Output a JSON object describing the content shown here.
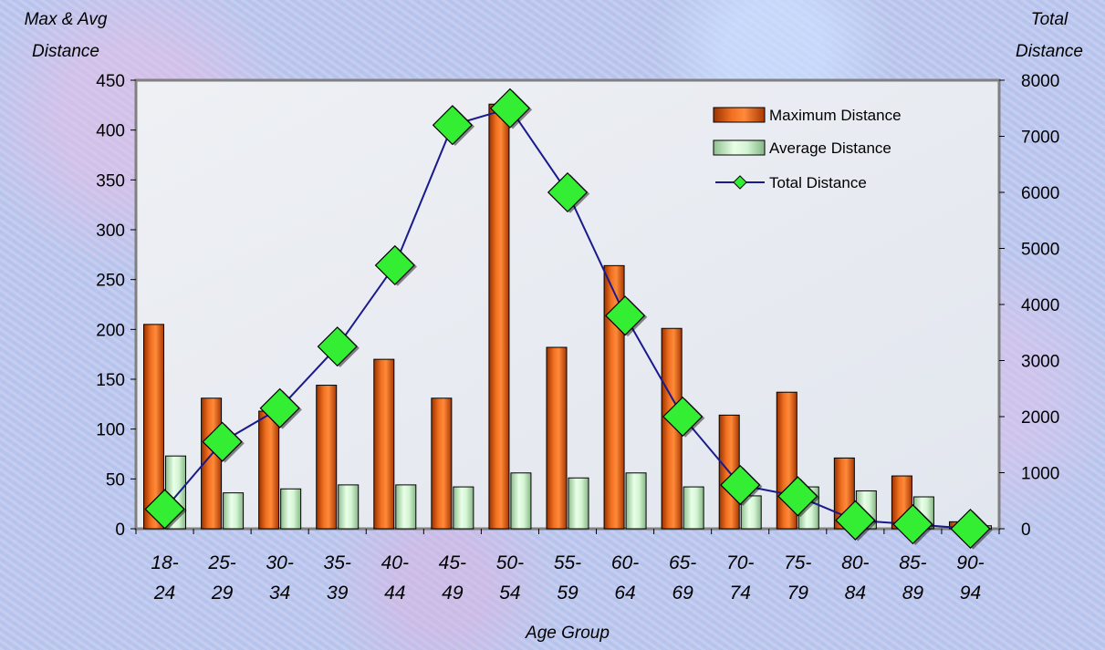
{
  "chart_data": {
    "type": "bar",
    "categories": [
      [
        "18-",
        "24"
      ],
      [
        "25-",
        "29"
      ],
      [
        "30-",
        "34"
      ],
      [
        "35-",
        "39"
      ],
      [
        "40-",
        "44"
      ],
      [
        "45-",
        "49"
      ],
      [
        "50-",
        "54"
      ],
      [
        "55-",
        "59"
      ],
      [
        "60-",
        "64"
      ],
      [
        "65-",
        "69"
      ],
      [
        "70-",
        "74"
      ],
      [
        "75-",
        "79"
      ],
      [
        "80-",
        "84"
      ],
      [
        "85-",
        "89"
      ],
      [
        "90-",
        "94"
      ]
    ],
    "series": [
      {
        "name": "Maximum Distance",
        "type": "bar",
        "axis": "left",
        "color": "#e65c10",
        "values": [
          205,
          131,
          118,
          144,
          170,
          131,
          426,
          182,
          264,
          201,
          114,
          137,
          71,
          53,
          7
        ]
      },
      {
        "name": "Average Distance",
        "type": "bar",
        "axis": "left",
        "color": "#c6efc6",
        "values": [
          73,
          36,
          40,
          44,
          44,
          42,
          56,
          51,
          56,
          42,
          33,
          42,
          38,
          32,
          3
        ]
      },
      {
        "name": "Total Distance",
        "type": "line",
        "axis": "right",
        "color": "#1a1a8c",
        "marker_color": "#33ee33",
        "values": [
          350,
          1550,
          2150,
          3250,
          4700,
          7200,
          7500,
          6000,
          3800,
          2000,
          780,
          580,
          150,
          80,
          0
        ]
      }
    ],
    "left_axis": {
      "label": [
        "Max & Avg",
        "Distance"
      ],
      "range": [
        0,
        450
      ],
      "ticks": [
        0,
        50,
        100,
        150,
        200,
        250,
        300,
        350,
        400,
        450
      ]
    },
    "right_axis": {
      "label": [
        "Total",
        "Distance"
      ],
      "range": [
        0,
        8000
      ],
      "ticks": [
        0,
        1000,
        2000,
        3000,
        4000,
        5000,
        6000,
        7000,
        8000
      ]
    },
    "xlabel": "Age Group",
    "legend_position": "top-right",
    "grid": false
  }
}
